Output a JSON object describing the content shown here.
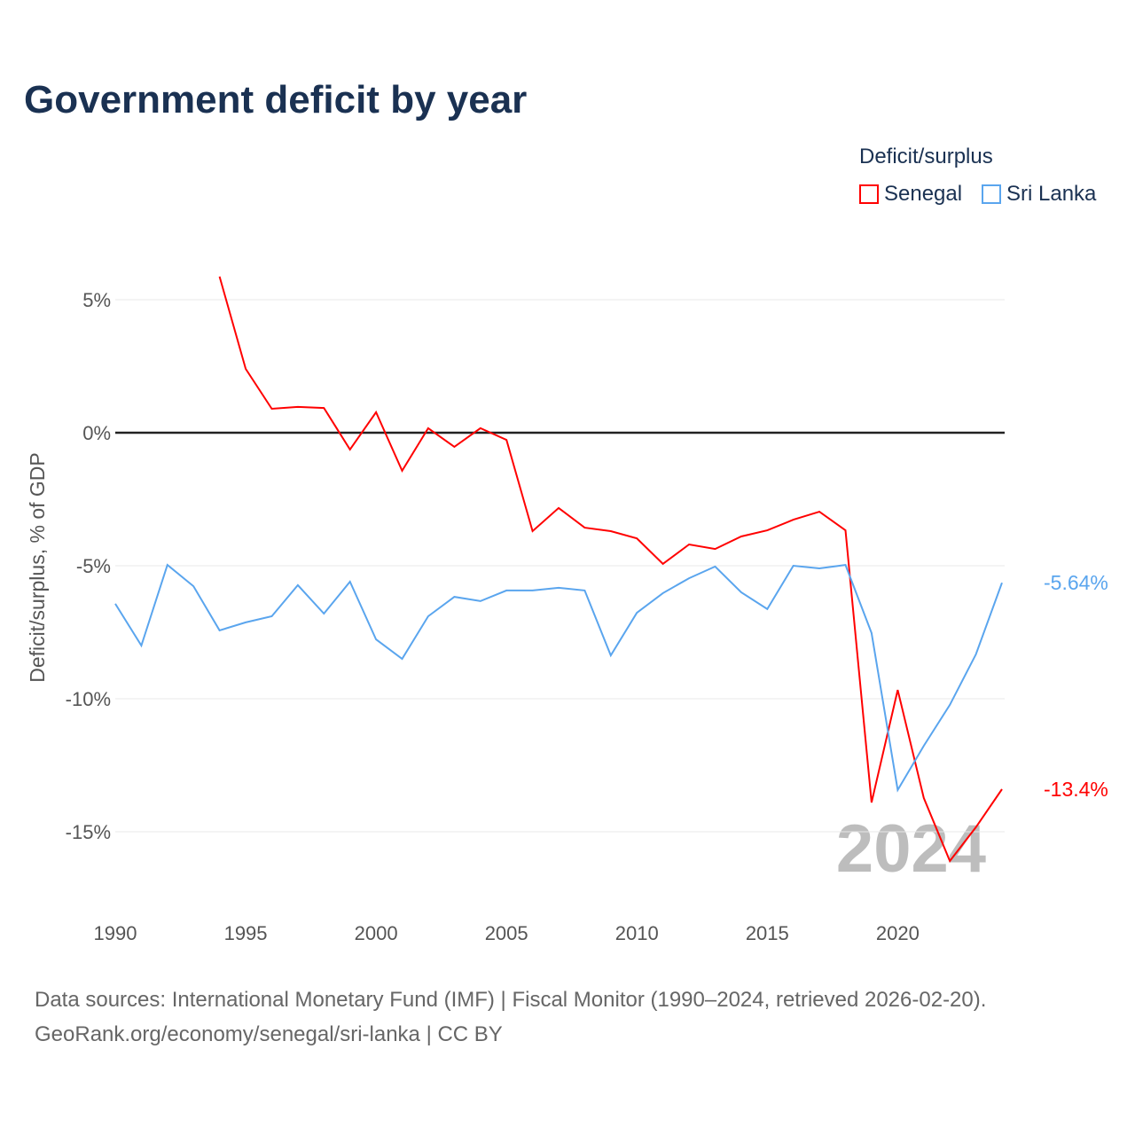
{
  "chart_data": {
    "type": "line",
    "title": "Government deficit by year",
    "ylabel": "Deficit/surplus, % of GDP",
    "xlabel": "",
    "ylim": [
      -17.5,
      7
    ],
    "xlim": [
      1990,
      2024
    ],
    "yticks": [
      5,
      0,
      -5,
      -10,
      -15
    ],
    "ytick_labels": [
      "5%",
      "0%",
      "-5%",
      "-10%",
      "-15%"
    ],
    "xticks": [
      1990,
      1995,
      2000,
      2005,
      2010,
      2015,
      2020
    ],
    "xtick_labels": [
      "1990",
      "1995",
      "2000",
      "2005",
      "2010",
      "2015",
      "2020"
    ],
    "legend_title": "Deficit/surplus",
    "legend_position": "top-right",
    "year_watermark": "2024",
    "series": [
      {
        "name": "Senegal",
        "color": "#ff0000",
        "end_label": "-13.4%",
        "x": [
          1994,
          1995,
          1996,
          1997,
          1998,
          1999,
          2000,
          2001,
          2002,
          2003,
          2004,
          2005,
          2006,
          2007,
          2008,
          2009,
          2010,
          2011,
          2012,
          2013,
          2014,
          2015,
          2016,
          2017,
          2018,
          2019,
          2020,
          2021,
          2022,
          2023,
          2024
        ],
        "values": [
          5.87,
          2.4,
          0.9,
          0.97,
          0.93,
          -0.63,
          0.77,
          -1.43,
          0.17,
          -0.53,
          0.17,
          -0.27,
          -3.7,
          -2.83,
          -3.57,
          -3.7,
          -3.97,
          -4.93,
          -4.2,
          -4.37,
          -3.9,
          -3.67,
          -3.27,
          -2.97,
          -3.67,
          -13.9,
          -9.67,
          -13.73,
          -16.1,
          -14.83,
          -13.4
        ]
      },
      {
        "name": "Sri Lanka",
        "color": "#5aa5ee",
        "end_label": "-5.64%",
        "x": [
          1990,
          1991,
          1992,
          1993,
          1994,
          1995,
          1996,
          1997,
          1998,
          1999,
          2000,
          2001,
          2002,
          2003,
          2004,
          2005,
          2006,
          2007,
          2008,
          2009,
          2010,
          2011,
          2012,
          2013,
          2014,
          2015,
          2016,
          2017,
          2018,
          2019,
          2020,
          2021,
          2022,
          2023,
          2024
        ],
        "values": [
          -6.43,
          -8.0,
          -4.97,
          -5.77,
          -7.43,
          -7.13,
          -6.9,
          -5.73,
          -6.8,
          -5.6,
          -7.77,
          -8.5,
          -6.9,
          -6.17,
          -6.33,
          -5.93,
          -5.93,
          -5.83,
          -5.93,
          -8.37,
          -6.77,
          -6.03,
          -5.47,
          -5.03,
          -6.0,
          -6.63,
          -5.0,
          -5.1,
          -4.97,
          -7.53,
          -13.43,
          -11.77,
          -10.23,
          -8.33,
          -5.64
        ]
      }
    ]
  },
  "footer": {
    "line1": "Data sources: International Monetary Fund (IMF) | Fiscal Monitor (1990–2024, retrieved 2026-02-20).",
    "line2": "GeoRank.org/economy/senegal/sri-lanka | CC BY"
  }
}
